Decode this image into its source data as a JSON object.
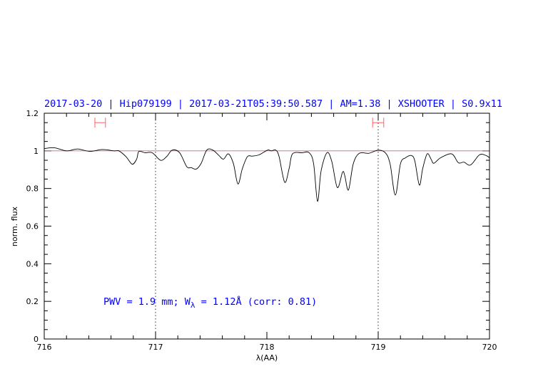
{
  "chart_data": {
    "type": "line",
    "title": "2017-03-20 | Hip079199 | 2017-03-21T05:39:50.587 | AM=1.38 | XSHOOTER | S0.9x11",
    "xlabel": "λ(AA)",
    "ylabel": "norm. flux",
    "xlim": [
      716,
      720
    ],
    "ylim": [
      0,
      1.2
    ],
    "xticks": [
      716,
      717,
      718,
      719,
      720
    ],
    "xtick_labels": [
      "716",
      "717",
      "718",
      "719",
      "720"
    ],
    "yticks": [
      0,
      0.2,
      0.4,
      0.6,
      0.8,
      1,
      1.2
    ],
    "ytick_labels": [
      "0",
      "0.2",
      "0.4",
      "0.6",
      "0.8",
      "1",
      "1.2"
    ],
    "x_minor_step": 0.2,
    "y_minor_step": 0.05,
    "grid": false,
    "reference_line": {
      "y": 1.0,
      "color": "#c07070"
    },
    "vertical_dotted_lines": [
      717,
      719
    ],
    "range_markers": [
      {
        "x": [
          716.455,
          716.55
        ],
        "y": 1.15,
        "color": "#ff6060"
      },
      {
        "x": [
          718.95,
          719.05
        ],
        "y": 1.15,
        "color": "#ff6060"
      }
    ],
    "annotation": {
      "prefix": "PWV = 1.9 mm; W",
      "subscript": "λ",
      "suffix": " = 1.12Å (corr: 0.81)"
    },
    "series": [
      {
        "color": "#000000",
        "x": [
          716.0,
          716.01,
          716.094,
          716.2,
          716.3,
          716.41,
          716.52,
          716.63,
          716.67,
          716.735,
          716.79,
          716.83,
          716.85,
          716.905,
          716.97,
          717.045,
          717.1,
          717.15,
          717.216,
          717.28,
          717.32,
          717.365,
          717.41,
          717.46,
          717.515,
          717.57,
          717.61,
          717.655,
          717.7,
          717.74,
          717.78,
          717.825,
          717.87,
          717.93,
          718.006,
          718.04,
          718.08,
          718.11,
          718.16,
          718.2,
          718.23,
          718.316,
          718.38,
          718.42,
          718.455,
          718.487,
          718.54,
          718.583,
          718.633,
          718.68,
          718.7,
          718.733,
          718.776,
          718.83,
          718.915,
          719.0,
          719.064,
          719.107,
          719.154,
          719.2,
          719.245,
          719.3,
          719.33,
          719.37,
          719.4,
          719.44,
          719.475,
          719.5,
          719.56,
          719.66,
          719.72,
          719.77,
          719.83,
          719.91,
          719.97,
          720.0
        ],
        "y": [
          1.01,
          1.013,
          1.016,
          1.0,
          1.01,
          0.997,
          1.007,
          1.0,
          1.0,
          0.969,
          0.929,
          0.956,
          0.997,
          0.99,
          0.99,
          0.95,
          0.97,
          1.004,
          0.99,
          0.916,
          0.911,
          0.903,
          0.934,
          1.004,
          1.004,
          0.975,
          0.956,
          0.984,
          0.931,
          0.824,
          0.906,
          0.969,
          0.972,
          0.979,
          1.004,
          1.0,
          1.004,
          0.969,
          0.833,
          0.906,
          0.984,
          0.99,
          0.99,
          0.931,
          0.732,
          0.893,
          0.99,
          0.944,
          0.805,
          0.887,
          0.868,
          0.792,
          0.931,
          0.987,
          0.987,
          1.004,
          0.99,
          0.931,
          0.765,
          0.931,
          0.963,
          0.975,
          0.944,
          0.818,
          0.906,
          0.984,
          0.956,
          0.934,
          0.963,
          0.984,
          0.937,
          0.94,
          0.925,
          0.979,
          0.975,
          0.963
        ]
      }
    ]
  }
}
